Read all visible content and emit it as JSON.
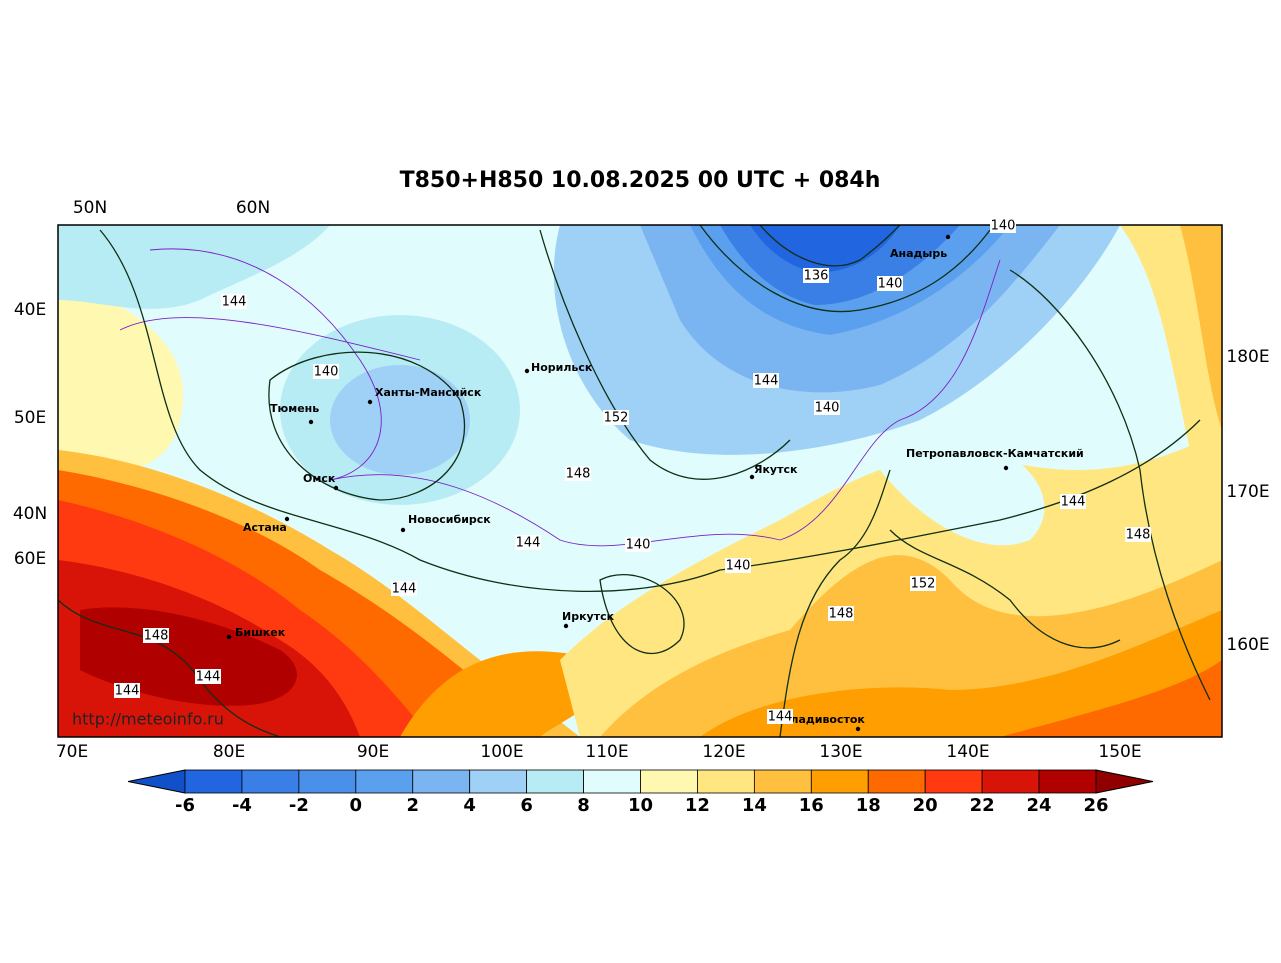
{
  "title": "T850+H850 10.08.2025 00 UTC + 084h",
  "map": {
    "lat_labels_top": [
      "50N",
      "60N"
    ],
    "lon_labels_left": [
      "40E",
      "50E",
      "40N",
      "60E"
    ],
    "lon_labels_right": [
      "180E",
      "170E",
      "160E"
    ],
    "lon_labels_bottom": [
      "70E",
      "80E",
      "90E",
      "100E",
      "110E",
      "120E",
      "130E",
      "140E",
      "150E"
    ],
    "cities": [
      "Норильск",
      "Ханты-Мансийск",
      "Тюмень",
      "Омск",
      "Астана",
      "Новосибирск",
      "Иркутск",
      "Якутск",
      "Анадырь",
      "Петропавловск-Камчатский",
      "Бишкек",
      "Владивосток"
    ],
    "contour_labels": [
      140,
      136,
      140,
      144,
      140,
      144,
      140,
      152,
      148,
      144,
      148,
      144,
      140,
      140,
      152,
      144,
      148,
      148,
      144,
      144,
      144
    ],
    "watermark": "http://meteoinfo.ru"
  },
  "colorbar": {
    "ticks": [
      -6,
      -4,
      -2,
      0,
      2,
      4,
      6,
      8,
      10,
      12,
      14,
      16,
      18,
      20,
      22,
      24,
      26
    ],
    "colors": [
      "#2166e0",
      "#3a7fe6",
      "#4a90ea",
      "#5aa0ee",
      "#7ab5f2",
      "#9fd0f5",
      "#b8ecf5",
      "#e0fcfc",
      "#fff8b0",
      "#ffe680",
      "#ffc040",
      "#ff9e00",
      "#ff6a00",
      "#ff3a10",
      "#d81408",
      "#b00000"
    ],
    "under_color": "#1050c8",
    "over_color": "#900000"
  }
}
